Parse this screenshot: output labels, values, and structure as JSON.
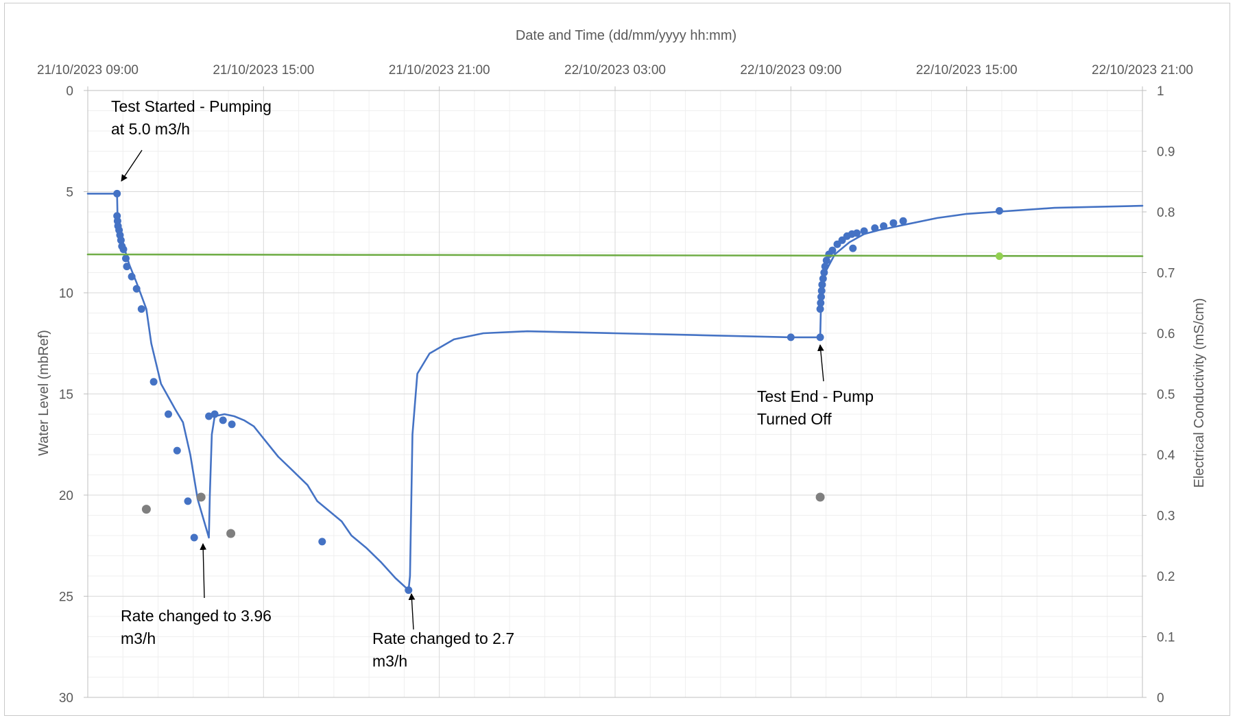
{
  "chart_data": {
    "type": "line",
    "title": "",
    "xlabel": "Date and Time (dd/mm/yyyy hh:mm)",
    "ylabel": "Water Level (mbRef)",
    "y2label": "Electrical Conductivity (mS/cm)",
    "x_axis_position": "top",
    "xlim": [
      "2023-10-21 09:00",
      "2023-10-22 21:00"
    ],
    "x_ticks": [
      "21/10/2023 09:00",
      "21/10/2023 15:00",
      "21/10/2023 21:00",
      "22/10/2023 03:00",
      "22/10/2023 09:00",
      "22/10/2023 15:00",
      "22/10/2023 21:00"
    ],
    "ylim": [
      0,
      30
    ],
    "y_reversed": true,
    "y_ticks": [
      "0",
      "5",
      "10",
      "15",
      "20",
      "25",
      "30"
    ],
    "y2lim": [
      0,
      1
    ],
    "y2_ticks": [
      "0",
      "0.1",
      "0.2",
      "0.3",
      "0.4",
      "0.5",
      "0.6",
      "0.7",
      "0.8",
      "0.9",
      "1"
    ],
    "grid": true,
    "legend": "none",
    "colors": {
      "water_level": "#4472C4",
      "ec": "#70AD47",
      "ec_point": "#92D050",
      "manual": "#7F7F7F",
      "grid": "#D9D9D9",
      "axis": "#BFBFBF"
    },
    "series": [
      {
        "axis": "left",
        "color": "#4472C4",
        "line": [
          [
            "2023-10-21 09:00",
            5.1
          ],
          [
            "2023-10-21 10:00",
            5.1
          ],
          [
            "2023-10-21 10:01",
            6.2
          ],
          [
            "2023-10-21 10:08",
            7.1
          ],
          [
            "2023-10-21 10:15",
            7.8
          ],
          [
            "2023-10-21 10:25",
            8.6
          ],
          [
            "2023-10-21 10:40",
            9.5
          ],
          [
            "2023-10-21 11:00",
            10.8
          ],
          [
            "2023-10-21 11:10",
            12.5
          ],
          [
            "2023-10-21 11:30",
            14.5
          ],
          [
            "2023-10-21 12:00",
            15.8
          ],
          [
            "2023-10-21 12:15",
            16.4
          ],
          [
            "2023-10-21 12:30",
            18.0
          ],
          [
            "2023-10-21 12:45",
            20.2
          ],
          [
            "2023-10-21 13:08",
            22.1
          ],
          [
            "2023-10-21 13:10",
            20.0
          ],
          [
            "2023-10-21 13:14",
            17.0
          ],
          [
            "2023-10-21 13:20",
            16.1
          ],
          [
            "2023-10-21 13:40",
            16.0
          ],
          [
            "2023-10-21 14:00",
            16.1
          ],
          [
            "2023-10-21 14:20",
            16.3
          ],
          [
            "2023-10-21 14:40",
            16.6
          ],
          [
            "2023-10-21 15:00",
            17.2
          ],
          [
            "2023-10-21 15:30",
            18.1
          ],
          [
            "2023-10-21 16:00",
            18.8
          ],
          [
            "2023-10-21 16:30",
            19.5
          ],
          [
            "2023-10-21 16:50",
            20.3
          ],
          [
            "2023-10-21 17:10",
            20.7
          ],
          [
            "2023-10-21 17:40",
            21.3
          ],
          [
            "2023-10-21 18:00",
            22.0
          ],
          [
            "2023-10-21 18:30",
            22.6
          ],
          [
            "2023-10-21 19:00",
            23.3
          ],
          [
            "2023-10-21 19:30",
            24.1
          ],
          [
            "2023-10-21 19:57",
            24.7
          ],
          [
            "2023-10-21 20:00",
            24.0
          ],
          [
            "2023-10-21 20:05",
            17.0
          ],
          [
            "2023-10-21 20:15",
            14.0
          ],
          [
            "2023-10-21 20:40",
            13.0
          ],
          [
            "2023-10-21 21:30",
            12.3
          ],
          [
            "2023-10-21 22:30",
            12.0
          ],
          [
            "2023-10-22 00:00",
            11.9
          ],
          [
            "2023-10-22 03:00",
            12.0
          ],
          [
            "2023-10-22 06:00",
            12.1
          ],
          [
            "2023-10-22 09:00",
            12.2
          ],
          [
            "2023-10-22 10:00",
            12.2
          ],
          [
            "2023-10-22 10:02",
            10.2
          ],
          [
            "2023-10-22 10:10",
            9.0
          ],
          [
            "2023-10-22 10:30",
            8.1
          ],
          [
            "2023-10-22 11:00",
            7.5
          ],
          [
            "2023-10-22 11:30",
            7.1
          ],
          [
            "2023-10-22 12:00",
            6.9
          ],
          [
            "2023-10-22 13:00",
            6.6
          ],
          [
            "2023-10-22 14:00",
            6.3
          ],
          [
            "2023-10-22 15:00",
            6.1
          ],
          [
            "2023-10-22 16:00",
            6.0
          ],
          [
            "2023-10-22 18:00",
            5.8
          ],
          [
            "2023-10-22 21:00",
            5.7
          ]
        ],
        "markers": [
          [
            "2023-10-21 10:00",
            5.1
          ],
          [
            "2023-10-21 10:00",
            6.2
          ],
          [
            "2023-10-21 10:01",
            6.45
          ],
          [
            "2023-10-21 10:02",
            6.7
          ],
          [
            "2023-10-21 10:04",
            6.9
          ],
          [
            "2023-10-21 10:06",
            7.15
          ],
          [
            "2023-10-21 10:08",
            7.4
          ],
          [
            "2023-10-21 10:10",
            7.7
          ],
          [
            "2023-10-21 10:13",
            7.85
          ],
          [
            "2023-10-21 10:18",
            8.3
          ],
          [
            "2023-10-21 10:20",
            8.7
          ],
          [
            "2023-10-21 10:30",
            9.2
          ],
          [
            "2023-10-21 10:40",
            9.8
          ],
          [
            "2023-10-21 10:50",
            10.8
          ],
          [
            "2023-10-21 11:15",
            14.4
          ],
          [
            "2023-10-21 11:45",
            16.0
          ],
          [
            "2023-10-21 12:03",
            17.8
          ],
          [
            "2023-10-21 12:25",
            20.3
          ],
          [
            "2023-10-21 12:38",
            22.1
          ],
          [
            "2023-10-21 13:08",
            16.1
          ],
          [
            "2023-10-21 13:20",
            16.0
          ],
          [
            "2023-10-21 13:37",
            16.3
          ],
          [
            "2023-10-21 13:55",
            16.5
          ],
          [
            "2023-10-21 17:00",
            22.3
          ],
          [
            "2023-10-21 19:57",
            24.7
          ],
          [
            "2023-10-22 09:00",
            12.2
          ],
          [
            "2023-10-22 10:00",
            12.2
          ],
          [
            "2023-10-22 10:00",
            10.8
          ],
          [
            "2023-10-22 10:01",
            10.5
          ],
          [
            "2023-10-22 10:02",
            10.2
          ],
          [
            "2023-10-22 10:03",
            9.9
          ],
          [
            "2023-10-22 10:04",
            9.6
          ],
          [
            "2023-10-22 10:06",
            9.3
          ],
          [
            "2023-10-22 10:08",
            9.0
          ],
          [
            "2023-10-22 10:10",
            8.7
          ],
          [
            "2023-10-22 10:13",
            8.4
          ],
          [
            "2023-10-22 10:18",
            8.1
          ],
          [
            "2023-10-22 10:25",
            7.9
          ],
          [
            "2023-10-22 10:35",
            7.6
          ],
          [
            "2023-10-22 10:45",
            7.4
          ],
          [
            "2023-10-22 10:55",
            7.2
          ],
          [
            "2023-10-22 11:05",
            7.1
          ],
          [
            "2023-10-22 11:15",
            7.05
          ],
          [
            "2023-10-22 11:30",
            6.95
          ],
          [
            "2023-10-22 11:52",
            6.8
          ],
          [
            "2023-10-22 12:10",
            6.7
          ],
          [
            "2023-10-22 12:30",
            6.55
          ],
          [
            "2023-10-22 12:50",
            6.45
          ],
          [
            "2023-10-22 11:07",
            7.8
          ],
          [
            "2023-10-22 16:07",
            5.95
          ]
        ]
      },
      {
        "axis": "right",
        "color": "#70AD47",
        "line": [
          [
            "2023-10-21 09:00",
            0.73
          ],
          [
            "2023-10-22 21:00",
            0.727
          ]
        ],
        "markers": [
          [
            "2023-10-22 16:07",
            0.727
          ]
        ]
      },
      {
        "axis": "left",
        "color": "#7F7F7F",
        "line": [],
        "markers": [
          [
            "2023-10-21 11:00",
            20.7
          ],
          [
            "2023-10-21 12:52",
            20.1
          ],
          [
            "2023-10-21 13:53",
            21.9
          ],
          [
            "2023-10-22 10:00",
            20.1
          ]
        ]
      }
    ],
    "annotations": [
      {
        "lines": [
          "Test Started - Pumping",
          "at 5.0 m3/h"
        ]
      },
      {
        "lines": [
          "Rate changed to 3.96",
          "m3/h"
        ]
      },
      {
        "lines": [
          "Rate changed to 2.7",
          "m3/h"
        ]
      },
      {
        "lines": [
          "Test End - Pump",
          "Turned Off"
        ]
      }
    ]
  }
}
